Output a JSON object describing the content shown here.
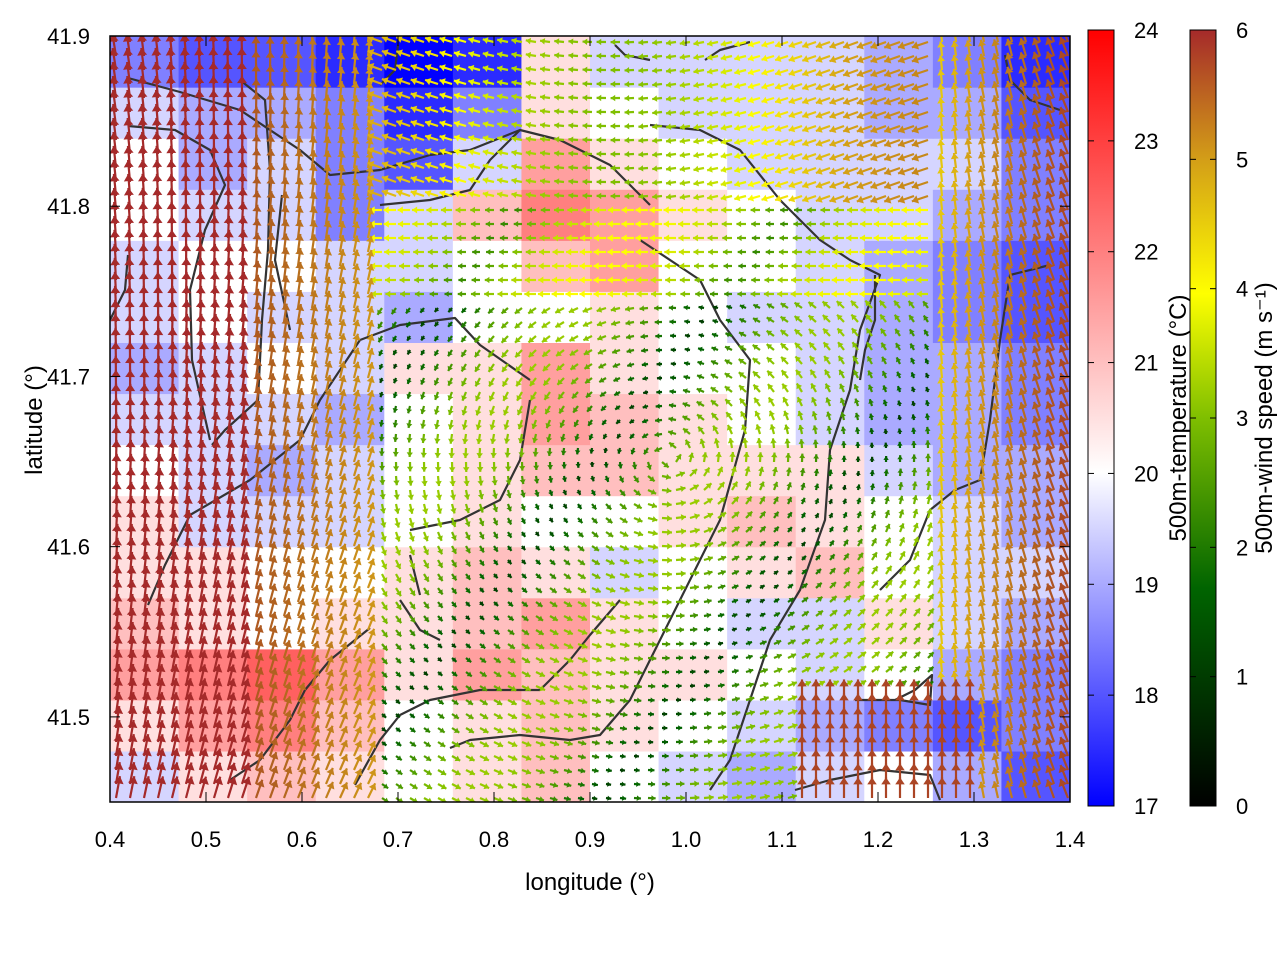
{
  "chart_data": {
    "type": "heatmap",
    "title": "",
    "xlabel": "longitude (°)",
    "ylabel": "latitude (°)",
    "xlim": [
      0.4,
      1.4
    ],
    "ylim": [
      41.45,
      41.9
    ],
    "x_ticks": [
      "0.4",
      "0.5",
      "0.6",
      "0.7",
      "0.8",
      "0.9",
      "1.0",
      "1.1",
      "1.2",
      "1.3",
      "1.4"
    ],
    "y_ticks": [
      "41.5",
      "41.6",
      "41.7",
      "41.8",
      "41.9"
    ],
    "x_tick_values": [
      0.4,
      0.5,
      0.6,
      0.7,
      0.8,
      0.9,
      1.0,
      1.1,
      1.2,
      1.3,
      1.4
    ],
    "y_tick_values": [
      41.5,
      41.6,
      41.7,
      41.8,
      41.9
    ],
    "grid": false,
    "overlay": "wind vectors (arrows) coloured by wind speed",
    "colorbars": [
      {
        "name": "temperature",
        "label": "500m-temperature (°C)",
        "range": [
          17,
          24
        ],
        "ticks": [
          "17",
          "18",
          "19",
          "20",
          "21",
          "22",
          "23",
          "24"
        ],
        "tick_values": [
          17,
          18,
          19,
          20,
          21,
          22,
          23,
          24
        ],
        "colors": [
          "#0000ff",
          "#ffffff",
          "#ff0000"
        ]
      },
      {
        "name": "wind_speed",
        "label": "500m-wind speed (m s⁻¹)",
        "range": [
          0,
          6
        ],
        "ticks": [
          "0",
          "1",
          "2",
          "3",
          "4",
          "5",
          "6"
        ],
        "tick_values": [
          0,
          1,
          2,
          3,
          4,
          5,
          6
        ],
        "colors": [
          "#000000",
          "#006400",
          "#7fbf00",
          "#ffff00",
          "#d4a017",
          "#b06020",
          "#a52a2a"
        ]
      }
    ],
    "temperature_field": [
      [
        19.5,
        20.5,
        21.0,
        20.5,
        20.0,
        20.5,
        21.0,
        20.0,
        19.5,
        19.0,
        19.5,
        20.0,
        19.0,
        18.0
      ],
      [
        20.5,
        21.5,
        22.0,
        21.0,
        20.0,
        20.5,
        21.0,
        20.5,
        20.0,
        19.5,
        19.0,
        18.5,
        18.0,
        18.5
      ],
      [
        21.5,
        22.0,
        22.5,
        21.5,
        20.5,
        21.5,
        21.0,
        20.5,
        20.5,
        20.0,
        19.5,
        20.0,
        19.0,
        18.5
      ],
      [
        21.0,
        20.5,
        20.0,
        20.5,
        20.5,
        21.0,
        21.5,
        20.5,
        20.0,
        19.5,
        19.5,
        20.5,
        19.5,
        19.0
      ],
      [
        20.5,
        20.5,
        20.0,
        20.0,
        20.5,
        21.0,
        20.5,
        19.5,
        20.0,
        20.5,
        21.0,
        20.0,
        19.5,
        19.5
      ],
      [
        20.5,
        19.5,
        19.5,
        19.5,
        20.0,
        20.5,
        20.0,
        20.0,
        20.5,
        21.0,
        20.5,
        20.0,
        19.5,
        19.0
      ],
      [
        20.0,
        19.5,
        19.0,
        19.5,
        20.0,
        20.5,
        21.0,
        21.0,
        20.5,
        20.5,
        20.5,
        19.5,
        19.0,
        19.0
      ],
      [
        19.5,
        19.5,
        19.5,
        19.0,
        20.0,
        20.5,
        21.5,
        21.0,
        20.5,
        20.0,
        19.5,
        19.0,
        19.0,
        18.5
      ],
      [
        19.0,
        19.5,
        20.0,
        19.5,
        20.5,
        20.5,
        21.5,
        20.5,
        20.0,
        20.0,
        19.5,
        19.0,
        19.0,
        18.5
      ],
      [
        19.5,
        20.0,
        19.5,
        19.5,
        19.0,
        20.0,
        20.0,
        20.5,
        20.0,
        19.5,
        19.5,
        19.0,
        18.5,
        18.0
      ],
      [
        19.5,
        20.0,
        20.0,
        19.5,
        19.5,
        20.0,
        21.0,
        21.5,
        20.0,
        20.0,
        19.5,
        19.0,
        18.5,
        18.0
      ],
      [
        20.0,
        19.5,
        19.5,
        18.5,
        19.5,
        21.0,
        22.0,
        21.5,
        20.5,
        20.0,
        19.5,
        19.5,
        19.0,
        18.5
      ],
      [
        20.0,
        19.0,
        19.5,
        18.5,
        18.0,
        19.5,
        21.5,
        20.5,
        20.0,
        19.5,
        19.5,
        19.5,
        19.5,
        18.5
      ],
      [
        19.5,
        19.0,
        19.0,
        18.5,
        17.5,
        18.5,
        20.5,
        20.0,
        19.5,
        19.5,
        19.5,
        19.0,
        19.0,
        18.0
      ],
      [
        18.5,
        18.0,
        18.0,
        17.5,
        17.0,
        17.5,
        20.5,
        19.5,
        19.5,
        19.5,
        19.5,
        19.0,
        18.5,
        17.5
      ]
    ],
    "temperature_field_orientation": "rows from south (41.45) to north (41.9), columns from west (0.4) to east (1.4)"
  }
}
